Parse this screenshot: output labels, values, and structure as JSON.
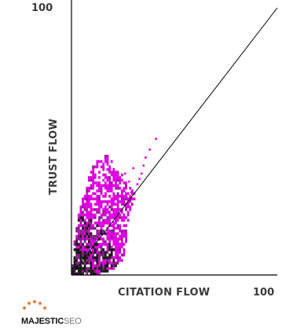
{
  "chart_data": {
    "type": "heatmap",
    "title": "",
    "xlabel": "CITATION FLOW",
    "ylabel": "TRUST FLOW",
    "xlim": [
      0,
      100
    ],
    "ylim": [
      0,
      100
    ],
    "x_tick_labels": [
      "100"
    ],
    "y_tick_labels": [
      "100"
    ],
    "reference_line": {
      "from": [
        0,
        0
      ],
      "to": [
        100,
        100
      ]
    },
    "colors": {
      "high_density": "#1a1a1a",
      "mid_density": "#8a1f8a",
      "low_density": "#e000e0",
      "line": "#000000",
      "axis": "#000000"
    },
    "cluster_envelope": [
      [
        0,
        0
      ],
      [
        12,
        0
      ],
      [
        16,
        1
      ],
      [
        20,
        2
      ],
      [
        24,
        4
      ],
      [
        26,
        8
      ],
      [
        27,
        14
      ],
      [
        28,
        20
      ],
      [
        30,
        26
      ],
      [
        32,
        30
      ],
      [
        30,
        32
      ],
      [
        26,
        36
      ],
      [
        21,
        42
      ],
      [
        17,
        45
      ],
      [
        13,
        43
      ],
      [
        10,
        40
      ],
      [
        7,
        33
      ],
      [
        4,
        25
      ],
      [
        2,
        17
      ],
      [
        1,
        8
      ]
    ],
    "scattered_points": [
      [
        41,
        51
      ],
      [
        36,
        44
      ],
      [
        35,
        41
      ],
      [
        34,
        38
      ],
      [
        33,
        36
      ],
      [
        30,
        40
      ],
      [
        28,
        35
      ],
      [
        26,
        38
      ],
      [
        38,
        47
      ],
      [
        32,
        34
      ],
      [
        29,
        31
      ],
      [
        27,
        29
      ]
    ]
  },
  "logo": {
    "brand": "MAJESTIC",
    "suffix": "SEO",
    "star_color": "#e8651a"
  }
}
